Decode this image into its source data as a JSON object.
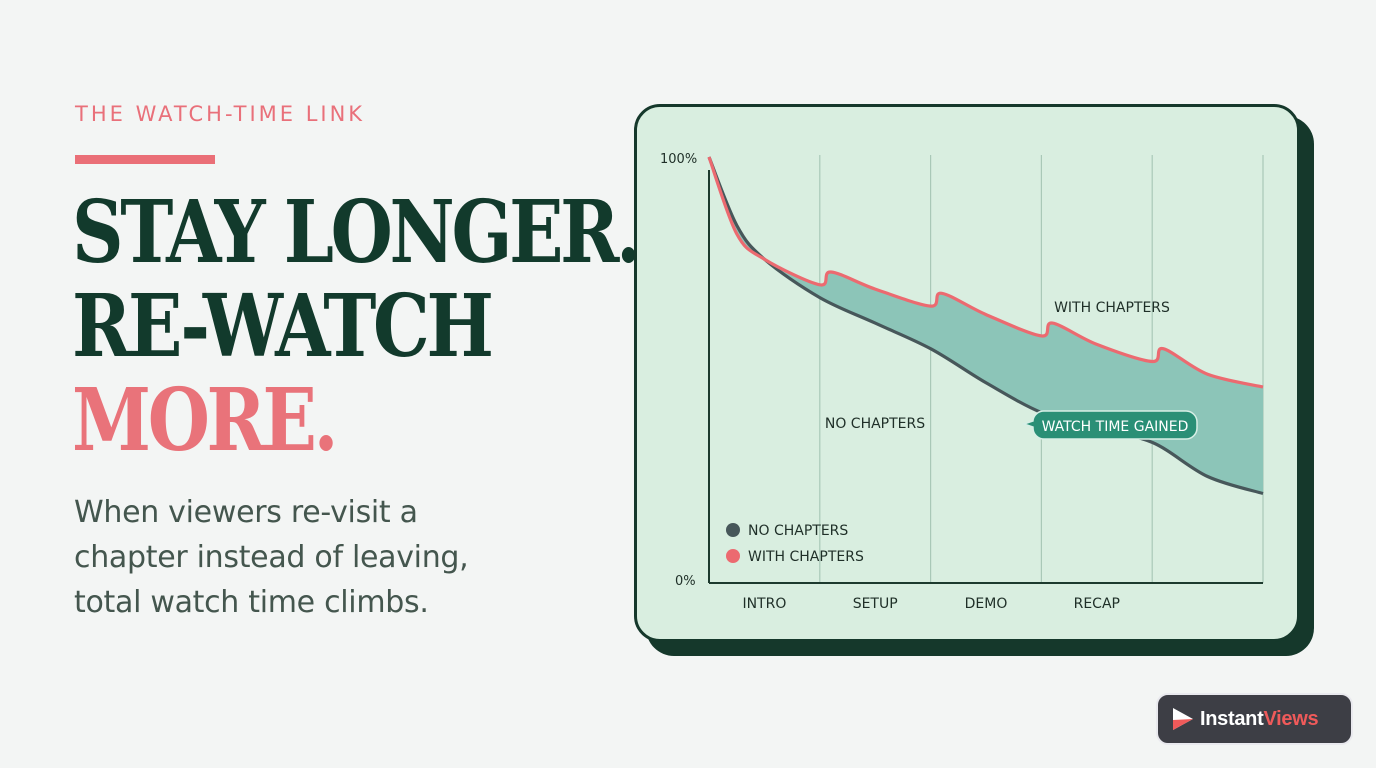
{
  "eyebrow": "THE WATCH-TIME LINK",
  "headline": {
    "line1": "STAY LONGER.",
    "line2": "RE-WATCH",
    "line3": "MORE."
  },
  "subtext": "When viewers re-visit a chapter instead of leaving, total watch time climbs.",
  "logo": {
    "part1": "Instant",
    "part2": "Views"
  },
  "colors": {
    "accent": "#ea6f77",
    "dark_green": "#15382b",
    "no_chapters_line": "#47575a",
    "with_chapters_line": "#ec6a70",
    "gain_fill": "#8cc5b8",
    "badge": "#2a8f76"
  },
  "chart_data": {
    "type": "area",
    "x_categories": [
      "INTRO",
      "SETUP",
      "DEMO",
      "RECAP"
    ],
    "ylim": [
      0,
      100
    ],
    "y_ticks": [
      "100%",
      "0%"
    ],
    "series": [
      {
        "name": "NO CHAPTERS",
        "x": [
          0,
          0.05,
          0.1,
          0.2,
          0.3,
          0.4,
          0.5,
          0.6,
          0.7,
          0.8,
          0.9,
          1
        ],
        "y": [
          100,
          84,
          76,
          67,
          61,
          55,
          47,
          40,
          36,
          33,
          25,
          21
        ]
      },
      {
        "name": "WITH CHAPTERS",
        "x": [
          0,
          0.05,
          0.1,
          0.2,
          0.22,
          0.3,
          0.4,
          0.42,
          0.5,
          0.6,
          0.62,
          0.7,
          0.8,
          0.82,
          0.9,
          1
        ],
        "y": [
          100,
          82,
          76,
          70,
          73,
          69,
          65,
          68,
          63,
          58,
          61,
          56,
          52,
          55,
          49,
          46
        ]
      }
    ],
    "annotations": {
      "with_label": "WITH CHAPTERS",
      "without_label": "NO CHAPTERS",
      "gain_label": "WATCH TIME GAINED"
    },
    "legend": [
      {
        "name": "NO CHAPTERS",
        "color": "#47575a"
      },
      {
        "name": "WITH CHAPTERS",
        "color": "#ec6a70"
      }
    ],
    "legend_position": "bottom-left",
    "grid": "vertical"
  }
}
